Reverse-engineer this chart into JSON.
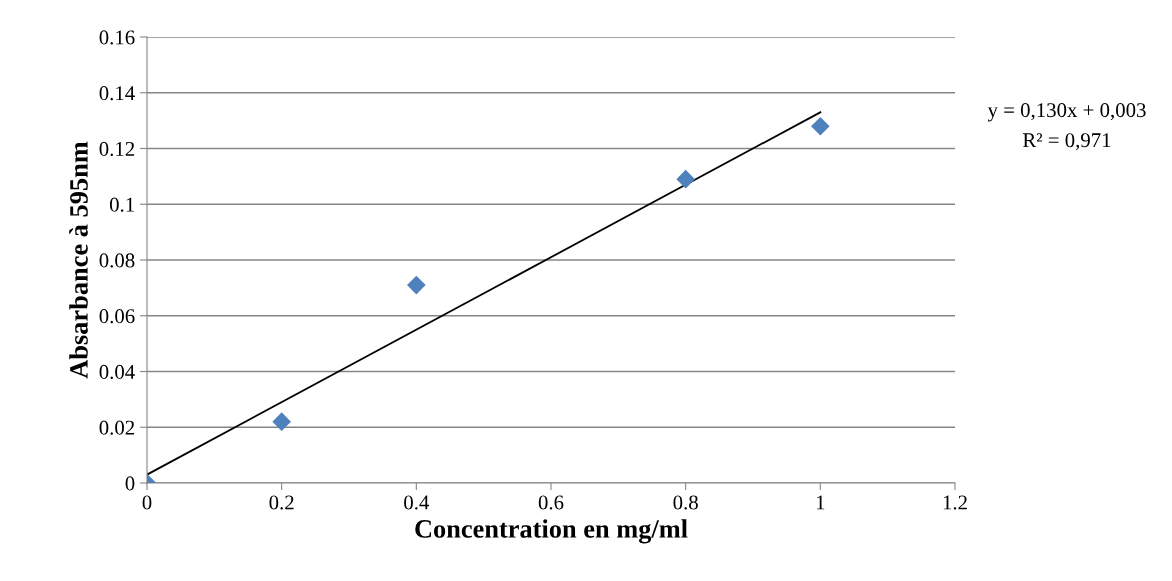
{
  "chart_data": {
    "type": "scatter",
    "xlabel": "Concentration en mg/ml",
    "ylabel": "Absarbance à 595nm",
    "x": [
      0,
      0.2,
      0.4,
      0.8,
      1
    ],
    "series": [
      {
        "color": "#4f81bd",
        "marker": "diamond",
        "values": [
          0,
          0.022,
          0.071,
          0.109,
          0.128
        ]
      },
      {
        "type": "line",
        "color": "#000000",
        "marker": "none",
        "line_style": "solid",
        "x": [
          0,
          1
        ],
        "values": [
          0.003,
          0.133
        ]
      }
    ],
    "xlim": [
      0,
      1.2
    ],
    "xticks": [
      0,
      0.2,
      0.4,
      0.6,
      0.8,
      1,
      1.2
    ],
    "ylim": [
      0,
      0.16
    ],
    "yticks": [
      0,
      0.02,
      0.04,
      0.06,
      0.08,
      0.1,
      0.12,
      0.14,
      0.16
    ],
    "grid": "y",
    "legend": false,
    "annotations": [
      "y = 0,130x + 0,003",
      "R² = 0,971"
    ]
  }
}
